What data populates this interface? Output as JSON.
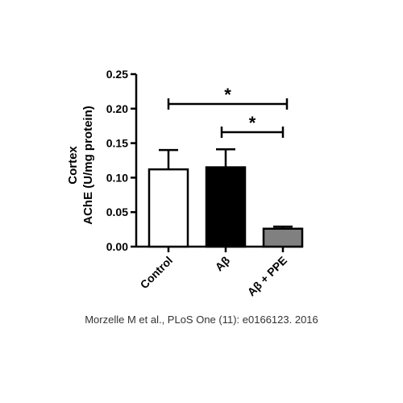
{
  "chart_data": {
    "type": "bar",
    "categories": [
      "Control",
      "Aβ",
      "Aβ + PPE"
    ],
    "values": [
      0.112,
      0.115,
      0.026
    ],
    "error_plus": [
      0.028,
      0.026,
      0.003
    ],
    "colors": [
      "#ffffff",
      "#000000",
      "#808080"
    ],
    "ylabel_line1": "Cortex",
    "ylabel_line2": "AChE (U/mg protein)",
    "ylim": [
      0,
      0.25
    ],
    "yticks": [
      "0.00",
      "0.05",
      "0.10",
      "0.15",
      "0.20",
      "0.25"
    ],
    "significance": [
      {
        "from": "Control",
        "to": "Aβ + PPE",
        "label": "*"
      },
      {
        "from": "Aβ",
        "to": "Aβ + PPE",
        "label": "*"
      }
    ]
  },
  "citation": "Morzelle M et al., PLoS One (11): e0166123. 2016"
}
